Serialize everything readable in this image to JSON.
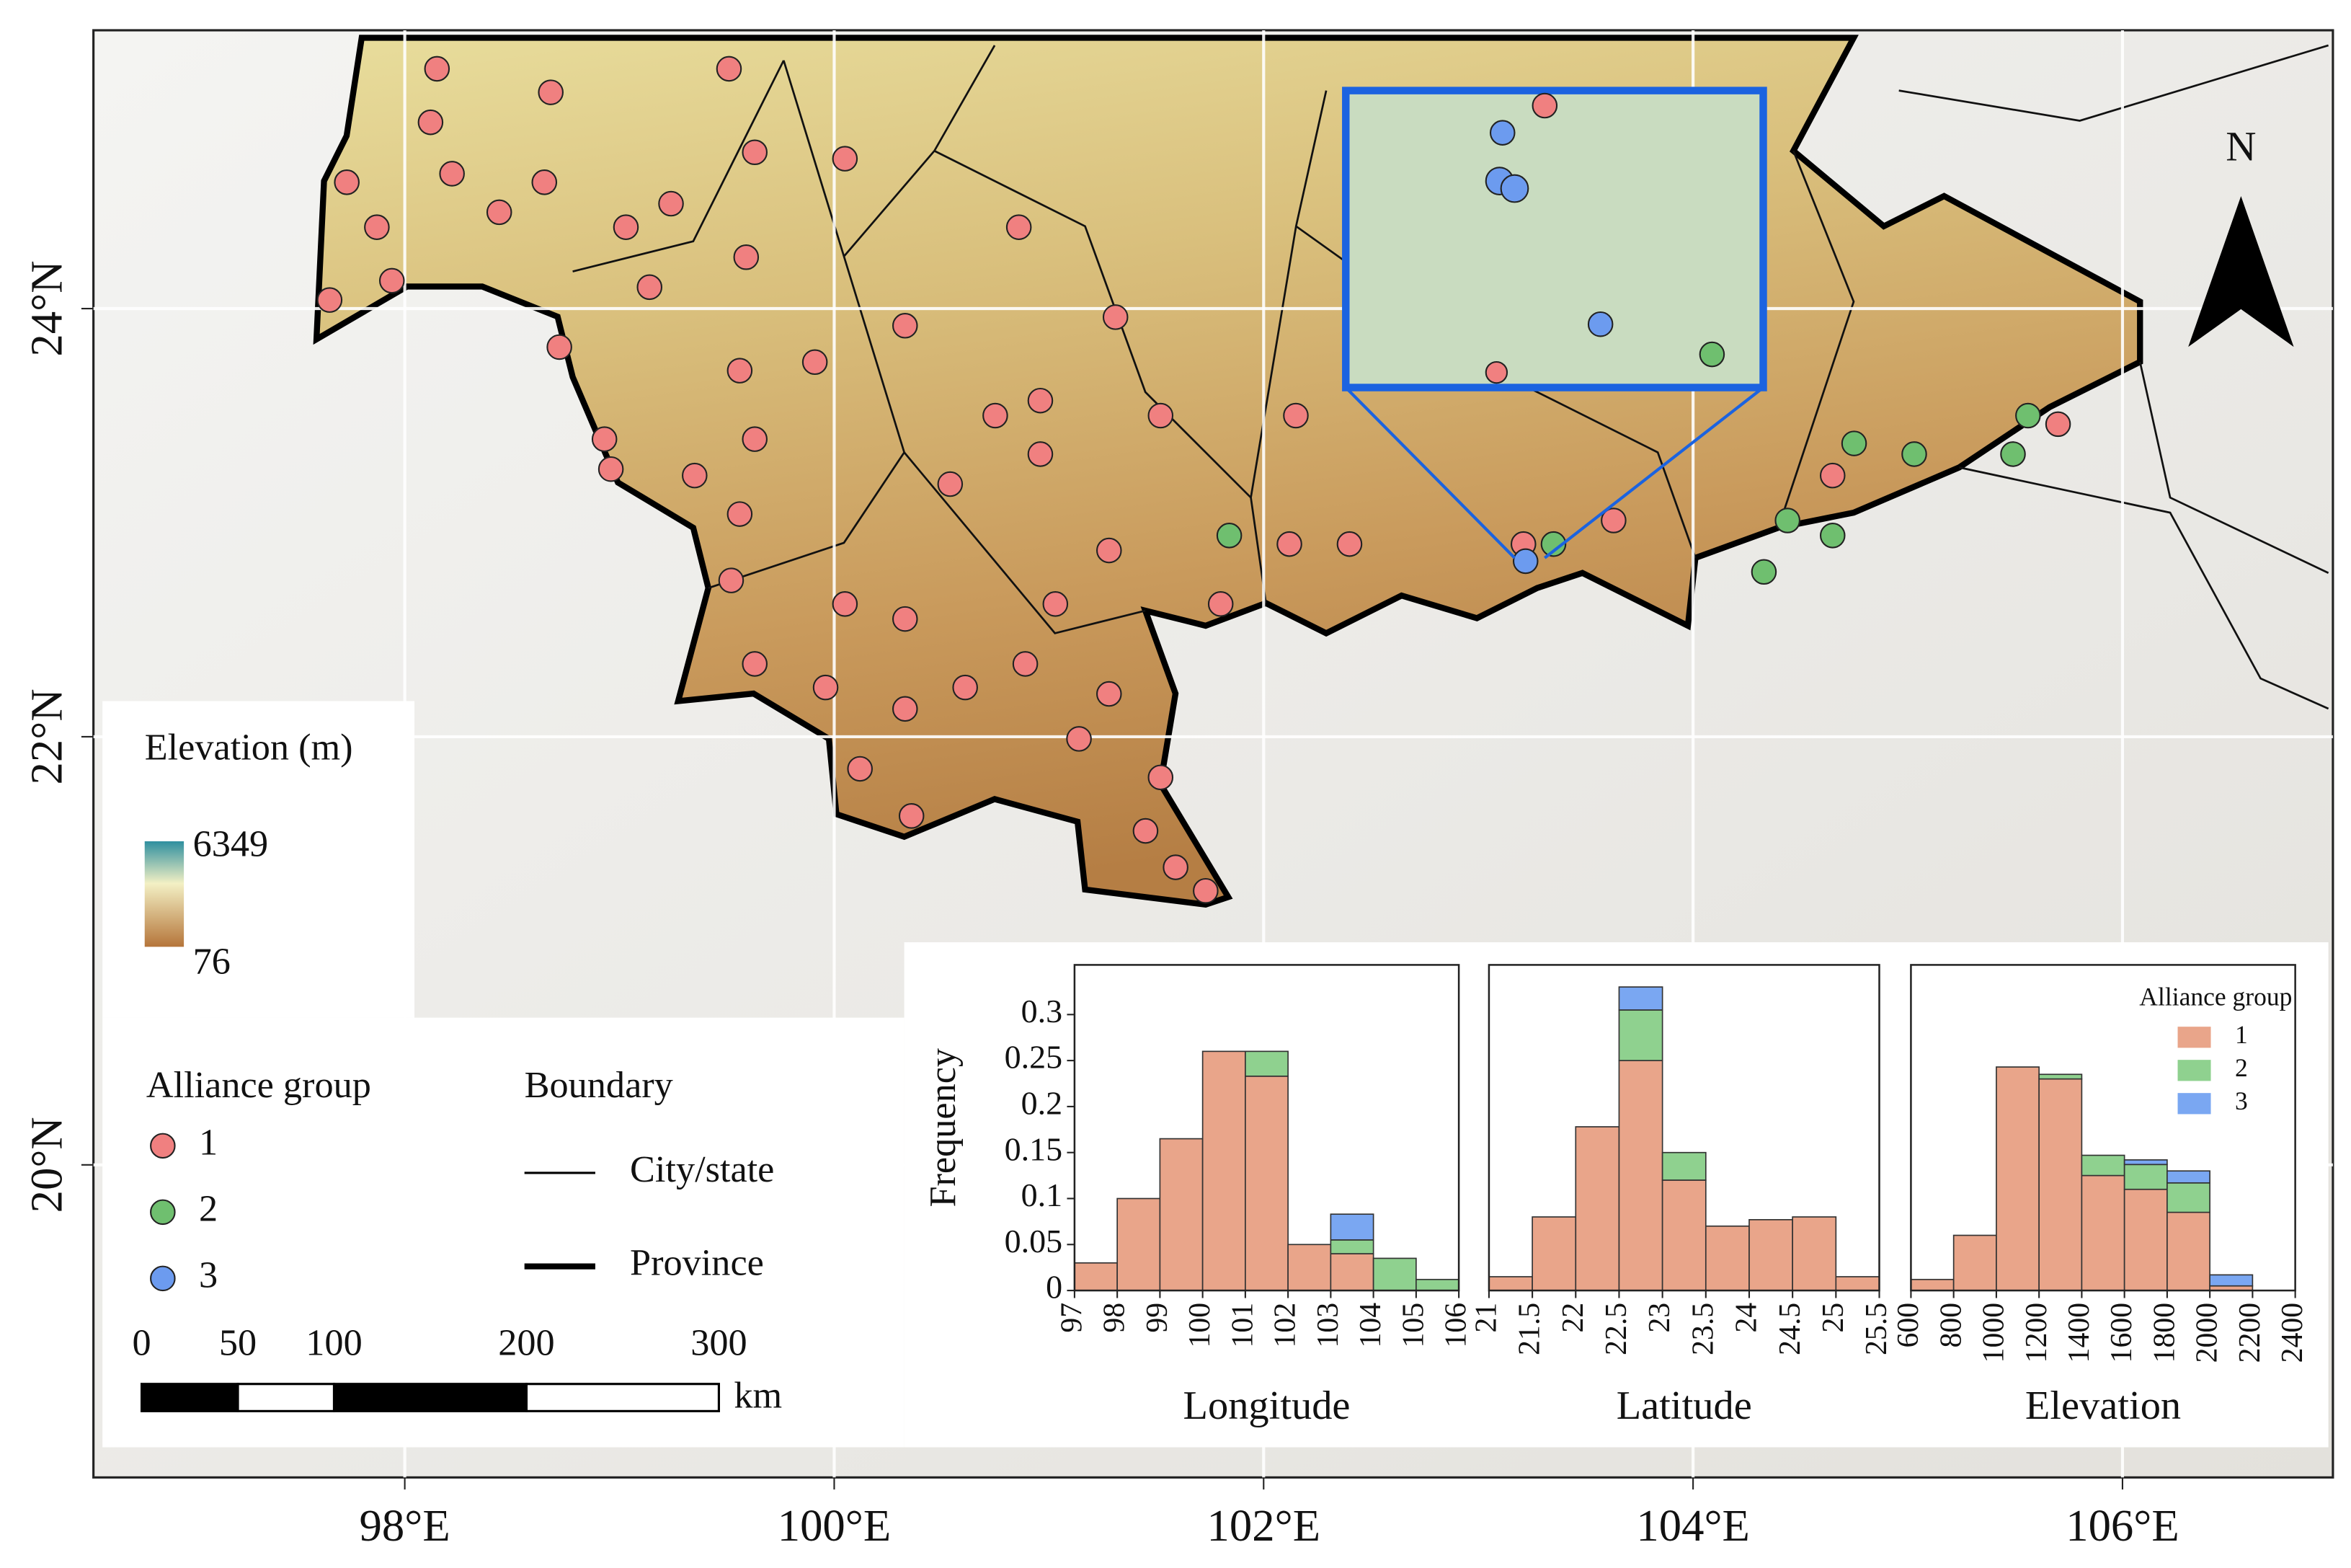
{
  "map": {
    "xlim": [
      96.55,
      106.98
    ],
    "ylim": [
      18.54,
      25.3
    ],
    "lon_ticks": [
      {
        "value": 98,
        "label": "98°E"
      },
      {
        "value": 100,
        "label": "100°E"
      },
      {
        "value": 102,
        "label": "102°E"
      },
      {
        "value": 104,
        "label": "104°E"
      },
      {
        "value": 106,
        "label": "106°E"
      }
    ],
    "lat_ticks": [
      {
        "value": 20,
        "label": "20°N"
      },
      {
        "value": 22,
        "label": "22°N"
      },
      {
        "value": 24,
        "label": "24°N"
      }
    ],
    "north": "N",
    "elevation": {
      "title": "Elevation (m)",
      "max": 6349,
      "min": 76
    },
    "group_title": "Alliance group",
    "sites": [
      {
        "name": "1",
        "color": "#f08080",
        "lon": [
          98.15,
          98.12,
          97.73,
          97.87,
          97.94,
          97.65,
          98.22,
          98.44,
          98.65,
          98.68,
          99.03,
          99.14,
          99.24,
          99.51,
          99.63,
          99.59,
          100.05,
          100.33,
          99.91,
          99.56,
          99.63,
          98.93,
          98.72,
          98.96,
          99.35,
          99.56,
          99.52,
          99.63,
          99.96,
          100.05,
          100.33,
          100.54,
          100.75,
          100.96,
          100.96,
          101.31,
          101.52,
          101.28,
          101.03,
          100.89,
          100.61,
          100.33,
          100.12,
          100.36,
          101.28,
          101.14,
          101.52,
          101.45,
          101.59,
          101.73,
          101.8,
          102.12,
          102.4,
          102.15,
          103.21,
          103.63,
          100.86,
          104.65,
          105.7
        ],
        "lat": [
          25.12,
          24.87,
          24.59,
          24.38,
          24.13,
          24.04,
          24.63,
          24.45,
          24.59,
          25.01,
          24.38,
          24.1,
          24.49,
          25.12,
          24.73,
          24.24,
          24.7,
          23.92,
          23.75,
          23.71,
          23.39,
          23.39,
          23.82,
          23.25,
          23.22,
          23.04,
          22.73,
          22.34,
          22.23,
          22.62,
          22.55,
          23.18,
          23.5,
          23.57,
          23.32,
          23.96,
          23.5,
          22.87,
          22.62,
          22.34,
          22.23,
          22.13,
          21.85,
          21.63,
          22.2,
          21.99,
          21.81,
          21.56,
          21.39,
          21.28,
          22.62,
          22.9,
          22.9,
          23.5,
          22.9,
          23.01,
          24.38,
          23.22,
          23.46
        ]
      },
      {
        "name": "2",
        "color": "#6fbf6f",
        "lon": [
          101.84,
          103.35,
          104.33,
          104.44,
          104.65,
          104.75,
          105.03,
          105.56,
          105.49
        ],
        "lat": [
          22.94,
          22.9,
          22.77,
          23.01,
          22.94,
          23.37,
          23.32,
          23.5,
          23.32
        ]
      },
      {
        "name": "3",
        "color": "#6c9bef",
        "lon": [
          103.22
        ],
        "lat": [
          22.82
        ]
      }
    ],
    "boundary_title": "Boundary",
    "boundaries": [
      "City/state",
      "Province"
    ],
    "scale_bar": {
      "ticks": [
        0,
        50,
        100,
        200,
        300
      ],
      "unit": "km"
    }
  },
  "chart_data": [
    {
      "type": "histogram",
      "xlabel": "Longitude",
      "ylabel": "Frequency",
      "bins": [
        97,
        98,
        99,
        100,
        101,
        102,
        103,
        104,
        105,
        106
      ],
      "xlim": [
        97,
        106
      ],
      "xticks": [
        97,
        98,
        99,
        100,
        101,
        102,
        103,
        104,
        105,
        106
      ],
      "ylim": [
        0,
        0.354
      ],
      "yticks": [
        0,
        0.05,
        0.1,
        0.15,
        0.2,
        0.25,
        0.3
      ],
      "series": [
        {
          "color": "#e9a58a",
          "values": [
            0.03,
            0.1,
            0.165,
            0.26,
            0.233,
            0.05,
            0.04,
            0,
            0
          ]
        },
        {
          "color": "#8fd18f",
          "values": [
            0,
            0,
            0,
            0,
            0.027,
            0,
            0.015,
            0.035,
            0.012
          ]
        },
        {
          "color": "#7aa7f2",
          "values": [
            0,
            0,
            0,
            0,
            0,
            0,
            0.028,
            0,
            0
          ]
        }
      ]
    },
    {
      "type": "histogram",
      "xlabel": "Latitude",
      "bins": [
        21,
        21.5,
        22,
        22.5,
        23,
        23.5,
        24,
        24.5,
        25,
        25.5
      ],
      "xlim": [
        21,
        25.5
      ],
      "xticks": [
        21,
        21.5,
        22,
        22.5,
        23,
        23.5,
        24,
        24.5,
        25,
        25.5
      ],
      "ylim": [
        0,
        0.354
      ],
      "series": [
        {
          "color": "#e9a58a",
          "values": [
            0.015,
            0.08,
            0.178,
            0.25,
            0.12,
            0.07,
            0.077,
            0.08,
            0.015
          ]
        },
        {
          "color": "#8fd18f",
          "values": [
            0,
            0,
            0,
            0.055,
            0.03,
            0,
            0,
            0,
            0
          ]
        },
        {
          "color": "#7aa7f2",
          "values": [
            0,
            0,
            0,
            0.025,
            0,
            0,
            0,
            0,
            0
          ]
        }
      ]
    },
    {
      "type": "histogram",
      "xlabel": "Elevation",
      "legend_title": "Alliance group",
      "legend": "upper right",
      "bins": [
        600,
        800,
        1000,
        1200,
        1400,
        1600,
        1800,
        2000,
        2200,
        2400
      ],
      "xlim": [
        600,
        2400
      ],
      "xticks": [
        600,
        800,
        1000,
        1200,
        1400,
        1600,
        1800,
        2000,
        2200,
        2400
      ],
      "ylim": [
        0,
        0.354
      ],
      "series": [
        {
          "name": "1",
          "color": "#e9a58a",
          "values": [
            0.012,
            0.06,
            0.243,
            0.23,
            0.125,
            0.11,
            0.085,
            0.005,
            0
          ]
        },
        {
          "name": "2",
          "color": "#8fd18f",
          "values": [
            0,
            0,
            0,
            0.005,
            0.022,
            0.027,
            0.032,
            0,
            0
          ]
        },
        {
          "name": "3",
          "color": "#7aa7f2",
          "values": [
            0,
            0,
            0,
            0,
            0,
            0.005,
            0.013,
            0.012,
            0
          ]
        }
      ]
    }
  ]
}
